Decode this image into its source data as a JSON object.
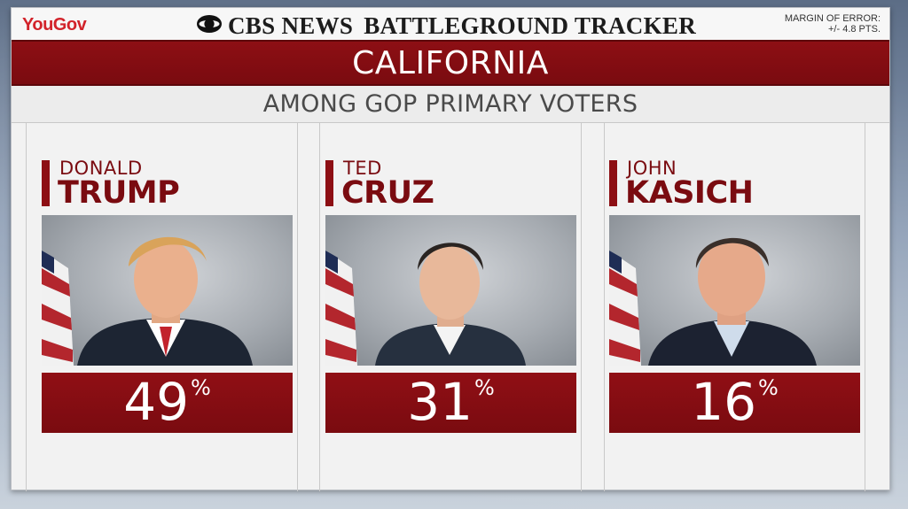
{
  "header": {
    "brand_left": "YouGov",
    "network": "CBS NEWS",
    "program": "BATTLEGROUND TRACKER",
    "moe_line1": "MARGIN OF ERROR:",
    "moe_line2": "+/- 4.8 PTS."
  },
  "state": "CALIFORNIA",
  "subtitle": "AMONG GOP PRIMARY VOTERS",
  "colors": {
    "accent_red": "#8d0f14",
    "panel_bg": "#f2f2f2",
    "brand_red": "#d2232a"
  },
  "candidates": [
    {
      "first_name": "DONALD",
      "last_name": "TRUMP",
      "score": "49",
      "pct_sign": "%",
      "portrait_icon": "candidate-portrait"
    },
    {
      "first_name": "TED",
      "last_name": "CRUZ",
      "score": "31",
      "pct_sign": "%",
      "portrait_icon": "candidate-portrait"
    },
    {
      "first_name": "JOHN",
      "last_name": "KASICH",
      "score": "16",
      "pct_sign": "%",
      "portrait_icon": "candidate-portrait"
    }
  ]
}
